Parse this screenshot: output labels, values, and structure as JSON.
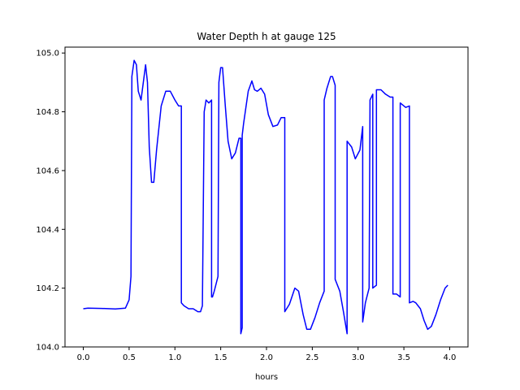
{
  "chart_data": {
    "type": "line",
    "title": "Water Depth h at gauge 125",
    "xlabel": "hours",
    "ylabel": "",
    "xlim": [
      -0.2,
      4.2
    ],
    "ylim": [
      104.0,
      105.02
    ],
    "xticks": [
      0.0,
      0.5,
      1.0,
      1.5,
      2.0,
      2.5,
      3.0,
      3.5,
      4.0
    ],
    "xtick_labels": [
      "0.0",
      "0.5",
      "1.0",
      "1.5",
      "2.0",
      "2.5",
      "3.0",
      "3.5",
      "4.0"
    ],
    "yticks": [
      104.0,
      104.2,
      104.4,
      104.6,
      104.8,
      105.0
    ],
    "ytick_labels": [
      "104.0",
      "104.2",
      "104.4",
      "104.6",
      "104.8",
      "105.0"
    ],
    "grid": false,
    "series": [
      {
        "color": "#0000ff",
        "x": [
          0.0,
          0.05,
          0.2,
          0.35,
          0.46,
          0.5,
          0.52,
          0.53,
          0.53,
          0.555,
          0.58,
          0.6,
          0.63,
          0.655,
          0.68,
          0.7,
          0.72,
          0.745,
          0.77,
          0.8,
          0.85,
          0.9,
          0.95,
          1.0,
          1.04,
          1.07,
          1.07,
          1.1,
          1.15,
          1.2,
          1.25,
          1.28,
          1.3,
          1.32,
          1.33,
          1.34,
          1.37,
          1.4,
          1.4,
          1.41,
          1.43,
          1.47,
          1.48,
          1.5,
          1.52,
          1.55,
          1.58,
          1.62,
          1.66,
          1.7,
          1.72,
          1.72,
          1.735,
          1.735,
          1.75,
          1.8,
          1.84,
          1.87,
          1.9,
          1.94,
          1.98,
          2.02,
          2.07,
          2.12,
          2.16,
          2.2,
          2.2,
          2.25,
          2.31,
          2.35,
          2.4,
          2.44,
          2.48,
          2.53,
          2.58,
          2.63,
          2.63,
          2.66,
          2.7,
          2.72,
          2.75,
          2.75,
          2.8,
          2.84,
          2.88,
          2.88,
          2.93,
          2.97,
          3.02,
          3.05,
          3.05,
          3.08,
          3.12,
          3.13,
          3.16,
          3.16,
          3.2,
          3.2,
          3.25,
          3.3,
          3.35,
          3.38,
          3.38,
          3.42,
          3.46,
          3.46,
          3.52,
          3.56,
          3.56,
          3.6,
          3.63,
          3.68,
          3.72,
          3.76,
          3.8,
          3.85,
          3.9,
          3.95,
          3.98
        ],
        "y": [
          104.13,
          104.132,
          104.131,
          104.129,
          104.132,
          104.16,
          104.24,
          104.91,
          104.92,
          104.975,
          104.96,
          104.87,
          104.84,
          104.9,
          104.96,
          104.9,
          104.68,
          104.56,
          104.56,
          104.67,
          104.82,
          104.87,
          104.87,
          104.84,
          104.82,
          104.82,
          104.15,
          104.14,
          104.13,
          104.13,
          104.12,
          104.12,
          104.14,
          104.8,
          104.82,
          104.84,
          104.83,
          104.84,
          104.17,
          104.17,
          104.19,
          104.24,
          104.9,
          104.95,
          104.95,
          104.82,
          104.7,
          104.64,
          104.66,
          104.71,
          104.71,
          104.045,
          104.065,
          104.72,
          104.76,
          104.87,
          104.905,
          104.875,
          104.87,
          104.88,
          104.86,
          104.79,
          104.75,
          104.755,
          104.78,
          104.78,
          104.12,
          104.145,
          104.2,
          104.19,
          104.11,
          104.06,
          104.06,
          104.1,
          104.15,
          104.19,
          104.84,
          104.88,
          104.92,
          104.92,
          104.89,
          104.23,
          104.19,
          104.12,
          104.045,
          104.7,
          104.68,
          104.64,
          104.67,
          104.75,
          104.085,
          104.15,
          104.2,
          104.84,
          104.86,
          104.2,
          104.21,
          104.875,
          104.875,
          104.86,
          104.85,
          104.85,
          104.18,
          104.18,
          104.17,
          104.83,
          104.815,
          104.82,
          104.15,
          104.155,
          104.15,
          104.13,
          104.09,
          104.06,
          104.07,
          104.11,
          104.16,
          104.2,
          104.21
        ]
      }
    ]
  }
}
